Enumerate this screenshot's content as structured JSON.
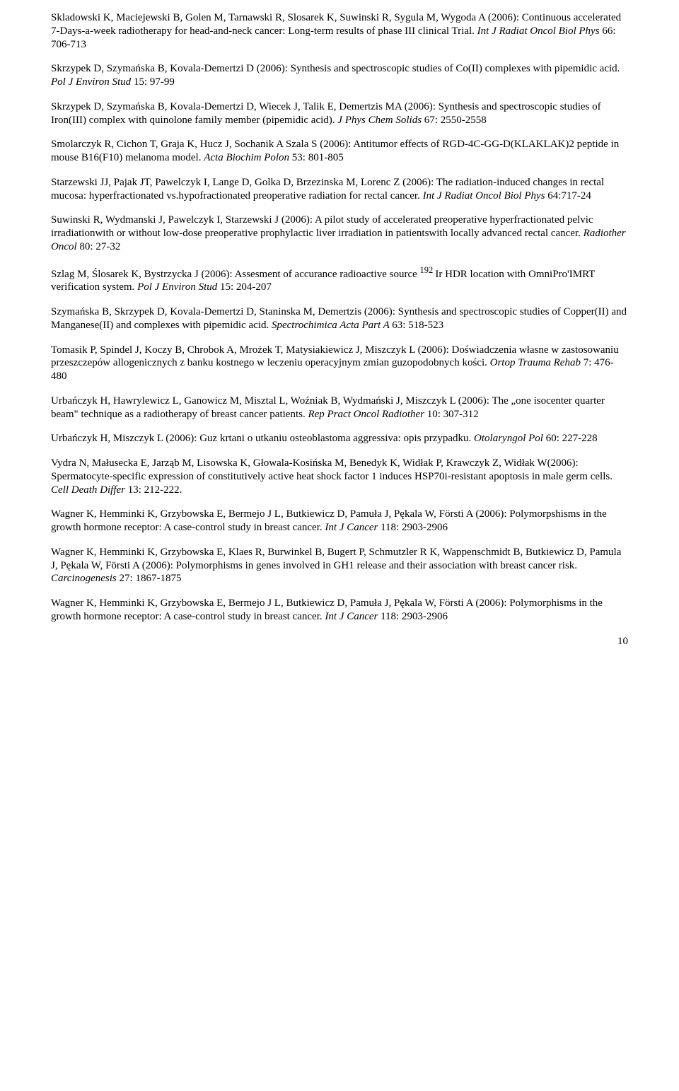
{
  "refs": [
    {
      "text_a": "Skladowski K, Maciejewski B, Golen M, Tarnawski R, Slosarek K, Suwinski R, Sygula M, Wygoda A (2006):  Continuous accelerated 7-Days-a-week radiotherapy for head-and-neck cancer: Long-term results of phase III clinical Trial. ",
      "journal": "Int J Radiat Oncol Biol Phys",
      "text_b": " 66: 706-713"
    },
    {
      "text_a": "Skrzypek D, Szymańska B, Kovala-Demertzi D (2006): Synthesis and spectroscopic studies of Co(II) complexes with pipemidic acid. ",
      "journal": "Pol J Environ Stud ",
      "text_b": "15: 97-99"
    },
    {
      "text_a": "Skrzypek D, Szymańska B, Kovala-Demertzi D, Wiecek J, Talik E, Demertzis MA (2006): Synthesis and spectroscopic studies of Iron(III) complex with quinolone family member (pipemidic acid). ",
      "journal": "J Phys Chem Solids ",
      "text_b": " 67: 2550-2558"
    },
    {
      "text_a": "Smolarczyk R, Cichon T, Graja K, Hucz J, Sochanik A Szala S (2006): Antitumor effects of RGD-4C-GG-D(KLAKLAK)2 peptide in mouse B16(F10) melanoma model. ",
      "journal": "Acta Biochim Polon ",
      "text_b": " 53: 801-805"
    },
    {
      "text_a": "Starzewski JJ, Pajak JT, Pawelczyk I, Lange D, Golka D, Brzezinska M, Lorenc Z (2006): The radiation-induced changes in rectal mucosa: hyperfractionated vs.hypofractionated preoperative radiation for rectal cancer. ",
      "journal": "Int J Radiat Oncol Biol Phys ",
      "text_b": "64:717-24"
    },
    {
      "text_a": "Suwinski R, Wydmanski J, Pawelczyk I, Starzewski J (2006): A pilot study of accelerated preoperative hyperfractionated pelvic irradiationwith or without low-dose preoperative prophylactic liver irradiation in patientswith locally advanced rectal cancer. ",
      "journal": "Radiother Oncol ",
      "text_b": "80: 27-32"
    },
    {
      "text_a": "Szlag M, Ślosarek K, Bystrzycka J (2006): Assesment of accurance radioactive source ",
      "sup": "192 ",
      "text_mid": "Ir HDR location with OmniPro'IMRT verification system. ",
      "journal": "Pol J Environ Stud ",
      "text_b": " 15: 204-207"
    },
    {
      "text_a": "Szymańska B, Skrzypek D, Kovala-Demertzi D, Staninska M, Demertzis (2006): Synthesis and spectroscopic studies of Copper(II) and Manganese(II) and complexes with pipemidic acid. ",
      "journal": "Spectrochimica Acta Part A ",
      "text_b": " 63: 518-523"
    },
    {
      "text_a": "Tomasik P, Spindel J, Koczy B, Chrobok A, Mrożek T, Matysiakiewicz J, Miszczyk L (2006): Doświadczenia własne w zastosowaniu przeszczepów allogenicznych z banku kostnego w leczeniu operacyjnym zmian guzopodobnych kości.  ",
      "journal": "Ortop Trauma Rehab ",
      "text_b": "7: 476-480"
    },
    {
      "text_a": "Urbańczyk H, Hawrylewicz L, Ganowicz M, Misztal L, Woźniak B, Wydmański J, Miszczyk L (2006): The „one isocenter quarter beam\" technique as a radiotherapy of breast cancer patients. ",
      "journal": "Rep Pract Oncol Radiother ",
      "text_b": "10: 307-312"
    },
    {
      "text_a": "Urbańczyk H, Miszczyk L (2006): Guz krtani o utkaniu osteoblastoma aggressiva: opis przypadku. ",
      "journal": "Otolaryngol Pol ",
      "text_b": "60: 227-228"
    },
    {
      "text_a": "Vydra N, Małusecka E, Jarząb M, Lisowska K, Głowala-Kosińska M, Benedyk K, Widłak P, Krawczyk Z, Widłak W(2006): Spermatocyte-specific expression of constitutively active heat shock factor 1 induces HSP70i-resistant apoptosis in male germ cells. ",
      "journal": "Cell Death Differ ",
      "text_b": "13: 212-222."
    },
    {
      "text_a": "Wagner K, Hemminki K, Grzybowska E, Bermejo J L, Butkiewicz D, Pamuła J, Pękala W, Försti A (2006): Polymorpshisms in the growth hormone receptor: A case-control study in breast cancer. ",
      "journal": "Int J Cancer ",
      "text_b": "118: 2903-2906"
    },
    {
      "text_a": "Wagner K, Hemminki K, Grzybowska E, Klaes R, Burwinkel B, Bugert P, Schmutzler R K, Wappenschmidt B, Butkiewicz D, Pamula J, Pękala W, Försti A (2006): Polymorphisms in genes involved in GH1 release and their association with breast cancer risk. ",
      "journal": "Carcinogenesis ",
      "text_b": "27: 1867-1875"
    },
    {
      "text_a": "Wagner K, Hemminki K, Grzybowska E, Bermejo J L, Butkiewicz D, Pamuła J, Pękala W,  Försti A (2006): Polymorphisms in the growth hormone receptor: A case-control study in breast cancer. ",
      "journal": "Int  J Cancer ",
      "text_b": "118: 2903-2906"
    }
  ],
  "page_number": "10"
}
